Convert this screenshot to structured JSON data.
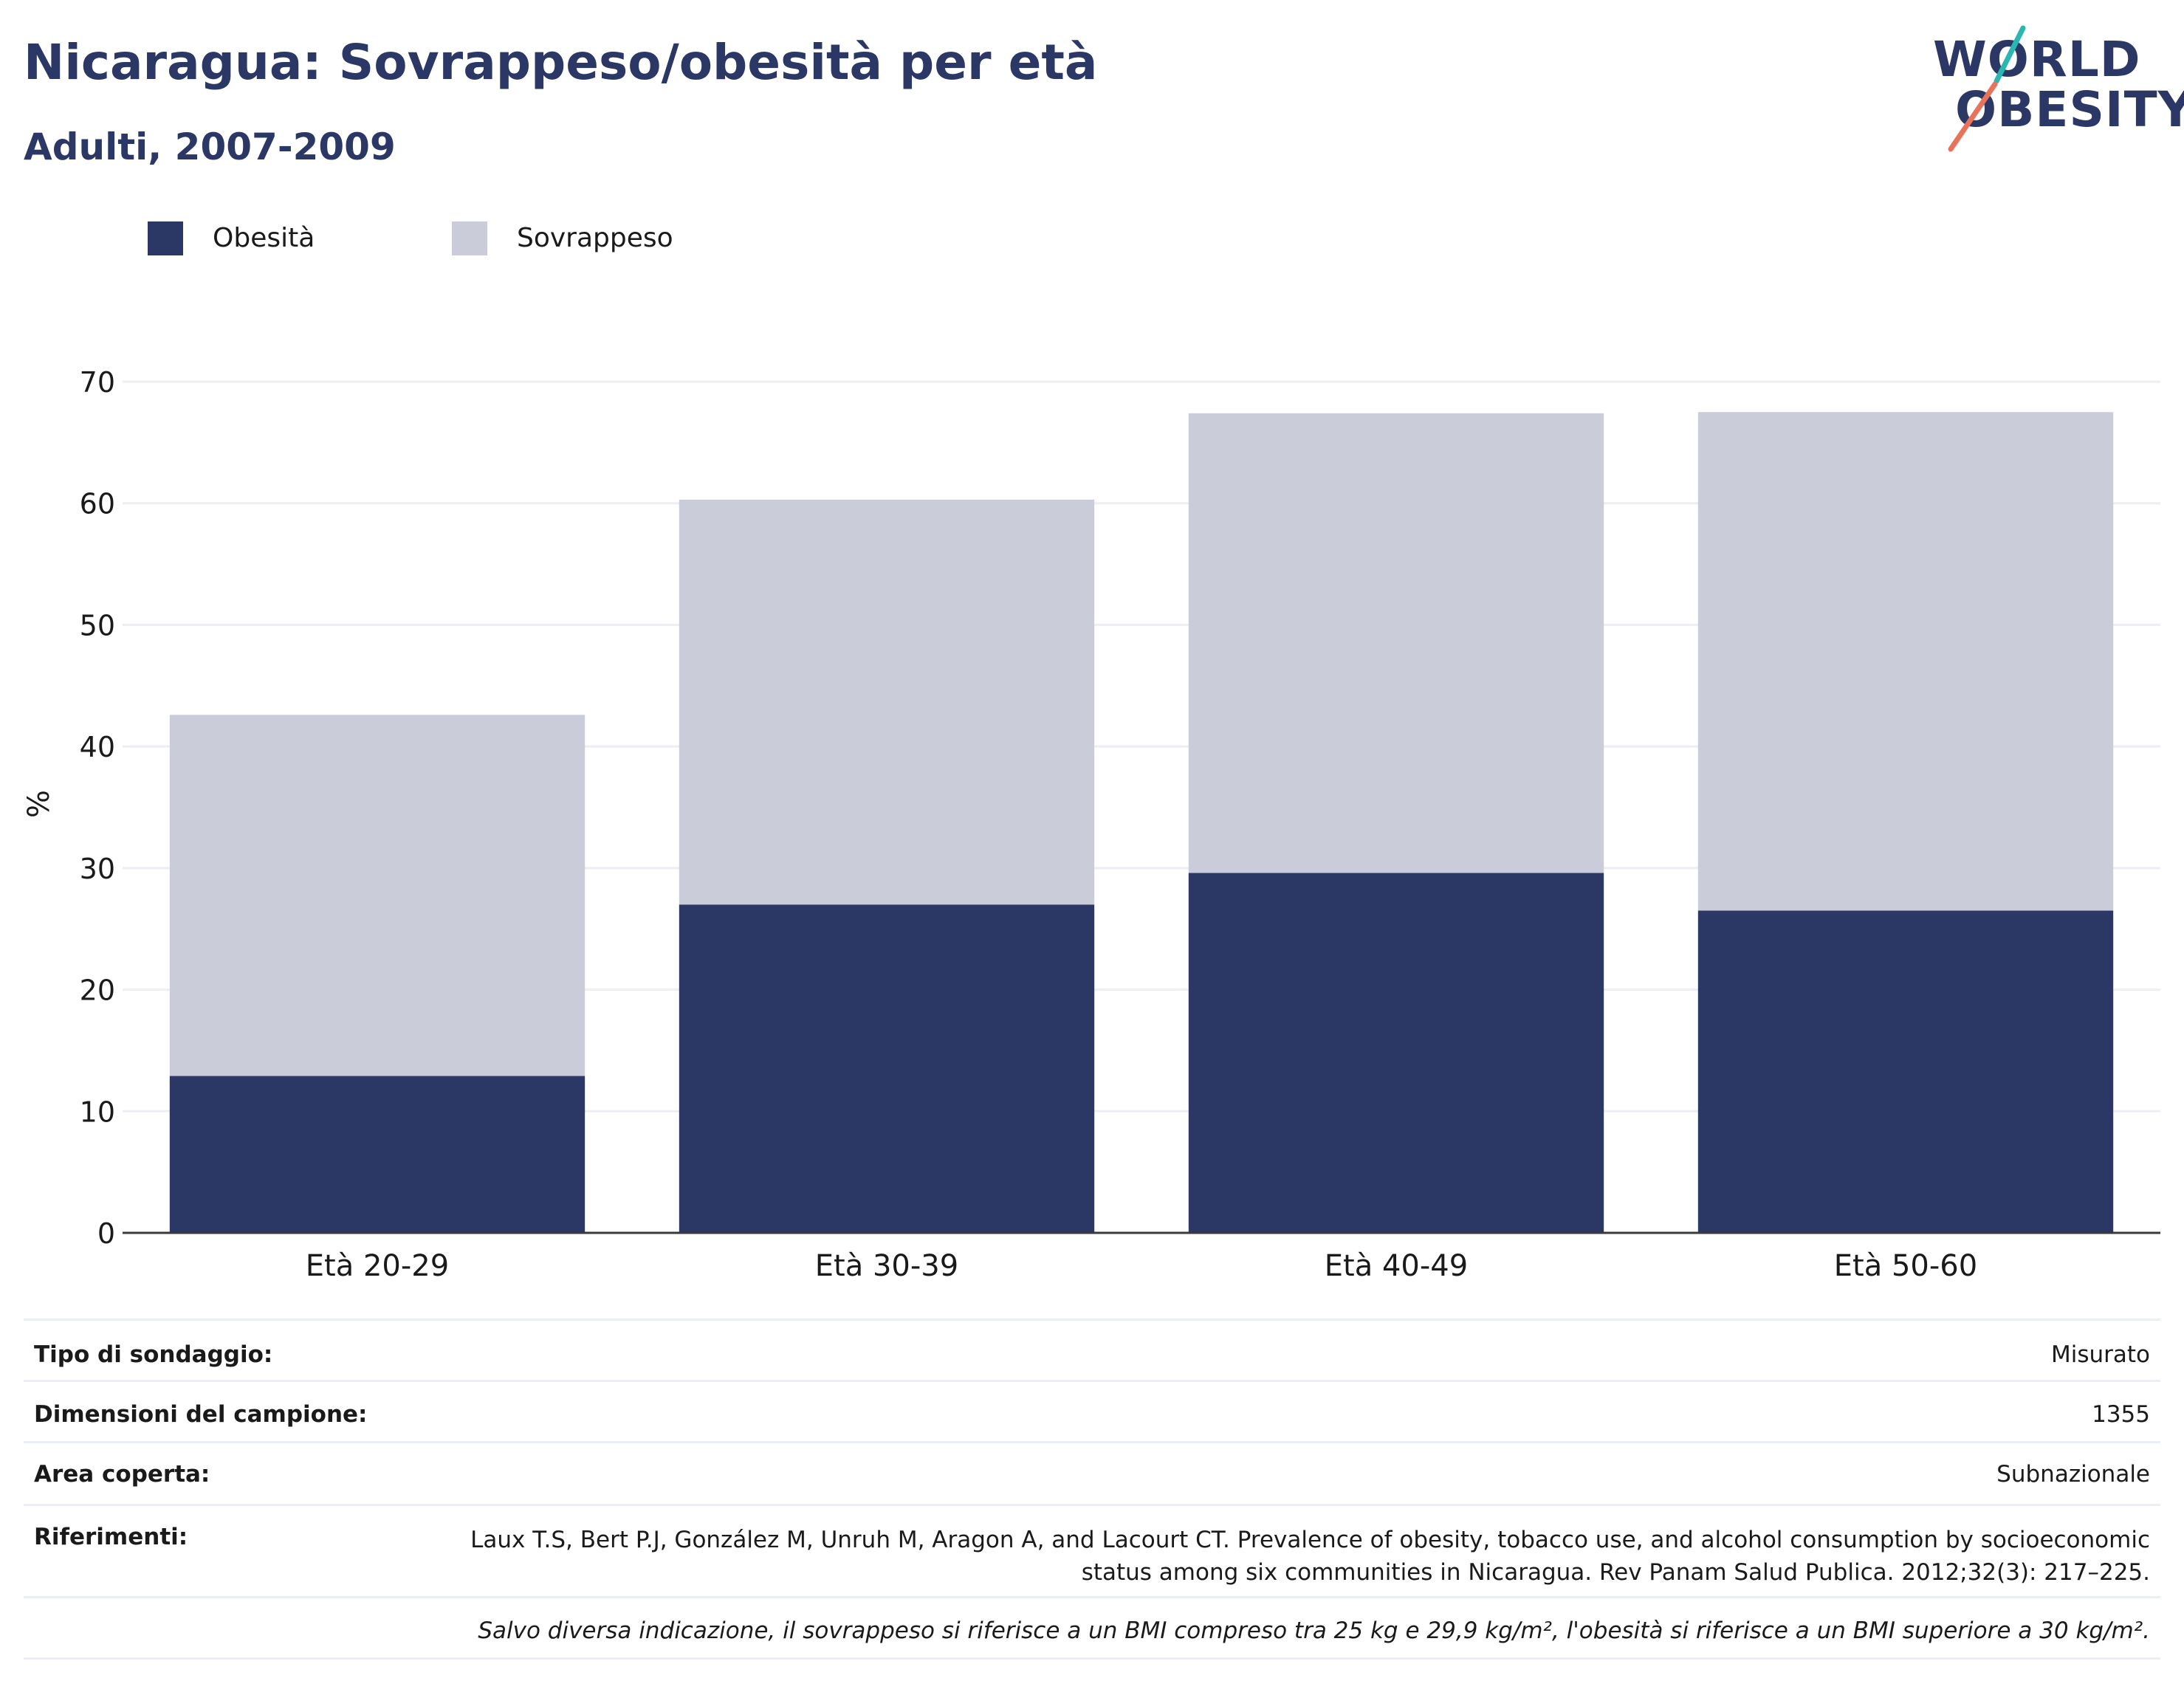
{
  "header": {
    "title": "Nicaragua: Sovrappeso/obesità per età",
    "subtitle": "Adulti, 2007-2009"
  },
  "logo": {
    "line1": "WORLD",
    "line2": "OBESITY",
    "accent_colors": [
      "#2ab7b1",
      "#e8735a"
    ]
  },
  "legend": [
    {
      "label": "Obesità",
      "color": "#2b3765"
    },
    {
      "label": "Sovrappeso",
      "color": "#cacdd9"
    }
  ],
  "chart_data": {
    "type": "bar",
    "stacked": true,
    "categories": [
      "Età 20-29",
      "Età 30-39",
      "Età 40-49",
      "Età 50-60"
    ],
    "series": [
      {
        "name": "Obesità",
        "values": [
          12.9,
          27.0,
          29.6,
          26.5
        ],
        "color": "#2b3765"
      },
      {
        "name": "Sovrappeso",
        "values": [
          29.7,
          33.3,
          37.8,
          41.0
        ],
        "color": "#cacdd9"
      }
    ],
    "ylabel": "%",
    "ylim": [
      0,
      70
    ],
    "yticks": [
      0,
      10,
      20,
      30,
      40,
      50,
      60,
      70
    ],
    "grid": true,
    "legend_position": "top-left"
  },
  "info": {
    "survey_type": {
      "label": "Tipo di sondaggio:",
      "value": "Misurato"
    },
    "sample_size": {
      "label": "Dimensioni del campione:",
      "value": "1355"
    },
    "area": {
      "label": "Area coperta:",
      "value": "Subnazionale"
    },
    "references": {
      "label": "Riferimenti:",
      "value": "Laux T.S, Bert P.J, González M, Unruh M, Aragon A, and Lacourt CT. Prevalence of obesity, tobacco use, and alcohol consumption by socioeconomic status among six communities in Nicaragua. Rev Panam Salud Publica. 2012;32(3): 217–225."
    },
    "footnote": "Salvo diversa indicazione, il sovrappeso si riferisce a un BMI compreso tra 25 kg e 29,9 kg/m², l'obesità si riferisce a un BMI superiore a 30 kg/m²."
  }
}
